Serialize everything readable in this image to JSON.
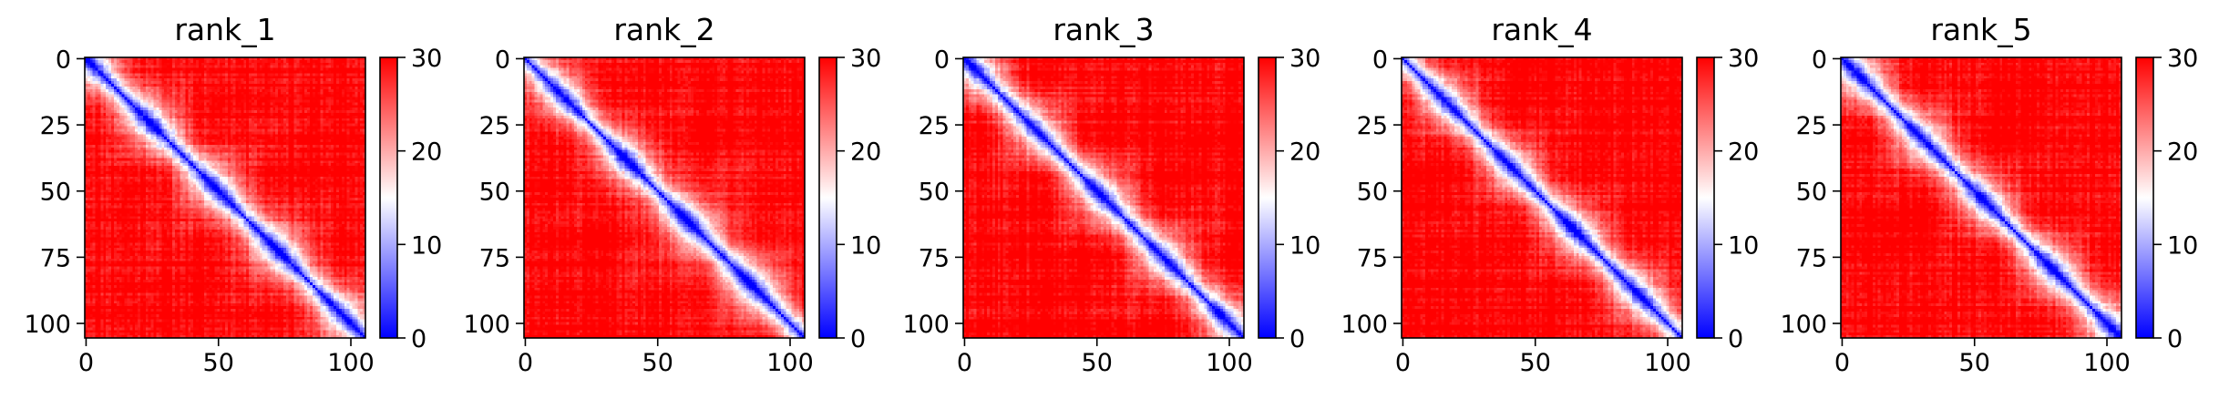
{
  "chart_data": [
    {
      "type": "heatmap",
      "title": "rank_1",
      "matrix_size": 106,
      "colormap": "bwr",
      "vmin": 0,
      "vmax": 30,
      "grid": false,
      "x_ticks": [
        0,
        50,
        100
      ],
      "y_ticks": [
        0,
        25,
        50,
        75,
        100
      ],
      "colorbar_ticks": [
        0,
        10,
        20,
        30
      ],
      "pattern": "distance matrix; low values (blue) along the main diagonal, rising to saturated red away from it",
      "xlim": [
        0,
        105
      ],
      "ylim": [
        105,
        0
      ]
    },
    {
      "type": "heatmap",
      "title": "rank_2",
      "matrix_size": 106,
      "colormap": "bwr",
      "vmin": 0,
      "vmax": 30,
      "grid": false,
      "x_ticks": [
        0,
        50,
        100
      ],
      "y_ticks": [
        0,
        25,
        50,
        75,
        100
      ],
      "colorbar_ticks": [
        0,
        10,
        20,
        30
      ],
      "pattern": "distance matrix; low values (blue) along the main diagonal, rising to saturated red away from it",
      "xlim": [
        0,
        105
      ],
      "ylim": [
        105,
        0
      ]
    },
    {
      "type": "heatmap",
      "title": "rank_3",
      "matrix_size": 106,
      "colormap": "bwr",
      "vmin": 0,
      "vmax": 30,
      "grid": false,
      "x_ticks": [
        0,
        50,
        100
      ],
      "y_ticks": [
        0,
        25,
        50,
        75,
        100
      ],
      "colorbar_ticks": [
        0,
        10,
        20,
        30
      ],
      "pattern": "distance matrix; low values (blue) along the main diagonal, rising to saturated red away from it",
      "xlim": [
        0,
        105
      ],
      "ylim": [
        105,
        0
      ]
    },
    {
      "type": "heatmap",
      "title": "rank_4",
      "matrix_size": 106,
      "colormap": "bwr",
      "vmin": 0,
      "vmax": 30,
      "grid": false,
      "x_ticks": [
        0,
        50,
        100
      ],
      "y_ticks": [
        0,
        25,
        50,
        75,
        100
      ],
      "colorbar_ticks": [
        0,
        10,
        20,
        30
      ],
      "pattern": "distance matrix; low values (blue) along the main diagonal, rising to saturated red away from it",
      "xlim": [
        0,
        105
      ],
      "ylim": [
        105,
        0
      ]
    },
    {
      "type": "heatmap",
      "title": "rank_5",
      "matrix_size": 106,
      "colormap": "bwr",
      "vmin": 0,
      "vmax": 30,
      "grid": false,
      "x_ticks": [
        0,
        50,
        100
      ],
      "y_ticks": [
        0,
        25,
        50,
        75,
        100
      ],
      "colorbar_ticks": [
        0,
        10,
        20,
        30
      ],
      "pattern": "distance matrix; low values (blue) along the main diagonal, rising to saturated red away from it",
      "xlim": [
        0,
        105
      ],
      "ylim": [
        105,
        0
      ]
    }
  ]
}
